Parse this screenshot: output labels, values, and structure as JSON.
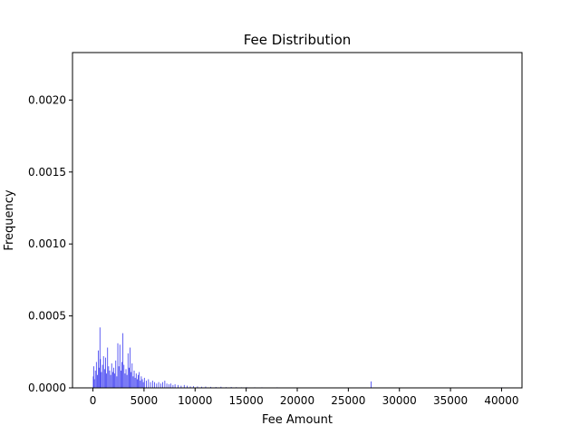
{
  "chart_data": {
    "type": "bar",
    "title": "Fee Distribution",
    "xlabel": "Fee Amount",
    "ylabel": "Frequency",
    "xlim": [
      -2000,
      42000
    ],
    "ylim": [
      0,
      0.00233
    ],
    "xticks": [
      0,
      5000,
      10000,
      15000,
      20000,
      25000,
      30000,
      35000,
      40000
    ],
    "xtick_labels": [
      "0",
      "5000",
      "10000",
      "15000",
      "20000",
      "25000",
      "30000",
      "35000",
      "40000"
    ],
    "yticks": [
      0.0,
      0.0005,
      0.001,
      0.0015,
      0.002
    ],
    "ytick_labels": [
      "0.0000",
      "0.0005",
      "0.0010",
      "0.0015",
      "0.0020"
    ],
    "bar_color": "#3a3af0",
    "grid": false,
    "legend": "none",
    "bar_width": 50,
    "bars": [
      {
        "x": 0,
        "y": 8e-05
      },
      {
        "x": 50,
        "y": 0.00015
      },
      {
        "x": 100,
        "y": 6e-05
      },
      {
        "x": 200,
        "y": 0.00012
      },
      {
        "x": 300,
        "y": 0.00018
      },
      {
        "x": 400,
        "y": 9e-05
      },
      {
        "x": 500,
        "y": 0.00026
      },
      {
        "x": 600,
        "y": 0.00014
      },
      {
        "x": 650,
        "y": 0.00042
      },
      {
        "x": 700,
        "y": 0.0002
      },
      {
        "x": 800,
        "y": 0.00011
      },
      {
        "x": 900,
        "y": 0.00016
      },
      {
        "x": 1000,
        "y": 0.00022
      },
      {
        "x": 1100,
        "y": 0.00013
      },
      {
        "x": 1200,
        "y": 0.00021
      },
      {
        "x": 1300,
        "y": 0.0001
      },
      {
        "x": 1400,
        "y": 0.00028
      },
      {
        "x": 1500,
        "y": 0.00015
      },
      {
        "x": 1600,
        "y": 0.00012
      },
      {
        "x": 1700,
        "y": 9e-05
      },
      {
        "x": 1800,
        "y": 0.00017
      },
      {
        "x": 1900,
        "y": 0.00011
      },
      {
        "x": 2000,
        "y": 0.00014
      },
      {
        "x": 2100,
        "y": 0.0001
      },
      {
        "x": 2200,
        "y": 0.00019
      },
      {
        "x": 2300,
        "y": 8e-05
      },
      {
        "x": 2400,
        "y": 0.00031
      },
      {
        "x": 2500,
        "y": 0.00015
      },
      {
        "x": 2600,
        "y": 0.0003
      },
      {
        "x": 2700,
        "y": 0.00012
      },
      {
        "x": 2800,
        "y": 0.00018
      },
      {
        "x": 2900,
        "y": 0.00038
      },
      {
        "x": 3000,
        "y": 0.00016
      },
      {
        "x": 3100,
        "y": 0.0001
      },
      {
        "x": 3200,
        "y": 0.00013
      },
      {
        "x": 3300,
        "y": 9e-05
      },
      {
        "x": 3400,
        "y": 0.00024
      },
      {
        "x": 3500,
        "y": 0.00014
      },
      {
        "x": 3600,
        "y": 0.00028
      },
      {
        "x": 3700,
        "y": 0.00011
      },
      {
        "x": 3800,
        "y": 0.00017
      },
      {
        "x": 3900,
        "y": 8e-05
      },
      {
        "x": 4000,
        "y": 0.00012
      },
      {
        "x": 4100,
        "y": 7e-05
      },
      {
        "x": 4200,
        "y": 0.0001
      },
      {
        "x": 4300,
        "y": 6e-05
      },
      {
        "x": 4400,
        "y": 9e-05
      },
      {
        "x": 4500,
        "y": 0.00011
      },
      {
        "x": 4600,
        "y": 5e-05
      },
      {
        "x": 4700,
        "y": 8e-05
      },
      {
        "x": 4800,
        "y": 6e-05
      },
      {
        "x": 4900,
        "y": 4e-05
      },
      {
        "x": 5000,
        "y": 7e-05
      },
      {
        "x": 5200,
        "y": 5e-05
      },
      {
        "x": 5400,
        "y": 6e-05
      },
      {
        "x": 5600,
        "y": 4e-05
      },
      {
        "x": 5800,
        "y": 5e-05
      },
      {
        "x": 6000,
        "y": 4e-05
      },
      {
        "x": 6200,
        "y": 3e-05
      },
      {
        "x": 6400,
        "y": 4e-05
      },
      {
        "x": 6600,
        "y": 3e-05
      },
      {
        "x": 6800,
        "y": 4e-05
      },
      {
        "x": 7000,
        "y": 5e-05
      },
      {
        "x": 7200,
        "y": 3e-05
      },
      {
        "x": 7400,
        "y": 2.5e-05
      },
      {
        "x": 7600,
        "y": 3e-05
      },
      {
        "x": 7800,
        "y": 2e-05
      },
      {
        "x": 8000,
        "y": 2.5e-05
      },
      {
        "x": 8300,
        "y": 2e-05
      },
      {
        "x": 8600,
        "y": 1.5e-05
      },
      {
        "x": 8900,
        "y": 2e-05
      },
      {
        "x": 9200,
        "y": 1.5e-05
      },
      {
        "x": 9500,
        "y": 1e-05
      },
      {
        "x": 9800,
        "y": 1.2e-05
      },
      {
        "x": 10200,
        "y": 1e-05
      },
      {
        "x": 10600,
        "y": 8e-06
      },
      {
        "x": 11000,
        "y": 9e-06
      },
      {
        "x": 11500,
        "y": 7e-06
      },
      {
        "x": 12000,
        "y": 6e-06
      },
      {
        "x": 12500,
        "y": 8e-06
      },
      {
        "x": 13000,
        "y": 5e-06
      },
      {
        "x": 13500,
        "y": 6e-06
      },
      {
        "x": 14000,
        "y": 5e-06
      },
      {
        "x": 14500,
        "y": 4e-06
      },
      {
        "x": 15000,
        "y": 5e-06
      },
      {
        "x": 15800,
        "y": 4e-06
      },
      {
        "x": 16500,
        "y": 4e-06
      },
      {
        "x": 17200,
        "y": 3e-06
      },
      {
        "x": 18000,
        "y": 4e-06
      },
      {
        "x": 19000,
        "y": 3e-06
      },
      {
        "x": 20000,
        "y": 3e-06
      },
      {
        "x": 21500,
        "y": 2e-06
      },
      {
        "x": 23000,
        "y": 2e-06
      },
      {
        "x": 24500,
        "y": 2e-06
      },
      {
        "x": 27200,
        "y": 4.5e-05
      },
      {
        "x": 29000,
        "y": 2e-06
      },
      {
        "x": 33000,
        "y": 3e-06
      },
      {
        "x": 36500,
        "y": 2e-06
      },
      {
        "x": 40000,
        "y": 4e-06
      }
    ]
  }
}
